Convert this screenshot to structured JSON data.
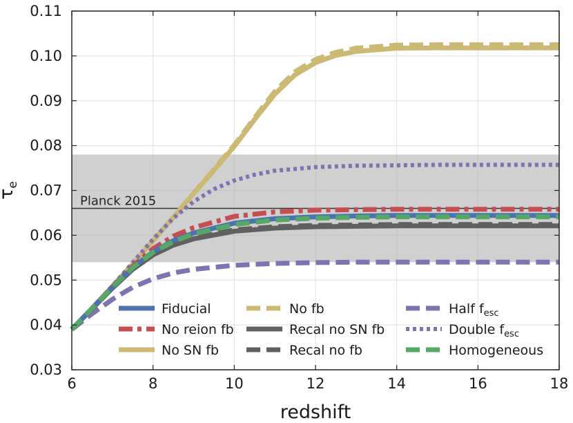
{
  "chart_data": {
    "type": "line",
    "title": "",
    "xlabel": "redshift",
    "ylabel": "τ",
    "ylabel_subscript": "e",
    "xlim": [
      6,
      18
    ],
    "ylim": [
      0.03,
      0.11
    ],
    "xticks": [
      6,
      8,
      10,
      12,
      14,
      16,
      18
    ],
    "xtick_labels": [
      "6",
      "8",
      "10",
      "12",
      "14",
      "16",
      "18"
    ],
    "yticks": [
      0.03,
      0.04,
      0.05,
      0.06,
      0.07,
      0.08,
      0.09,
      0.1,
      0.11
    ],
    "ytick_labels": [
      "0.03",
      "0.04",
      "0.05",
      "0.06",
      "0.07",
      "0.08",
      "0.09",
      "0.10",
      "0.11"
    ],
    "grid": true,
    "legend_position": "lower-right",
    "band": {
      "label": "Planck 2015",
      "center": 0.066,
      "low": 0.054,
      "high": 0.078
    },
    "series": [
      {
        "name": "Fiducial",
        "name_sub": "",
        "color": "#4c72b0",
        "style": "solid",
        "x": [
          6,
          6.5,
          7,
          7.5,
          8,
          8.5,
          9,
          10,
          11,
          12,
          13,
          14,
          15,
          16,
          17,
          18
        ],
        "y": [
          0.039,
          0.0437,
          0.0484,
          0.0528,
          0.0563,
          0.0588,
          0.0605,
          0.0627,
          0.0637,
          0.0641,
          0.0643,
          0.0644,
          0.0644,
          0.0644,
          0.0644,
          0.0644
        ]
      },
      {
        "name": "No reion fb",
        "name_sub": "",
        "color": "#c44e52",
        "style": "dashdot",
        "x": [
          6,
          6.5,
          7,
          7.5,
          8,
          8.5,
          9,
          10,
          11,
          12,
          13,
          14,
          15,
          16,
          17,
          18
        ],
        "y": [
          0.039,
          0.0437,
          0.0485,
          0.0531,
          0.057,
          0.0598,
          0.0617,
          0.0642,
          0.0652,
          0.0656,
          0.0657,
          0.0658,
          0.0658,
          0.0658,
          0.0658,
          0.0658
        ]
      },
      {
        "name": "No SN fb",
        "name_sub": "",
        "color": "#ccb974",
        "style": "solid",
        "x": [
          6,
          6.5,
          7,
          7.5,
          8,
          8.5,
          9,
          9.5,
          10,
          10.5,
          11,
          11.5,
          12,
          12.5,
          13,
          14,
          15,
          16,
          17,
          18
        ],
        "y": [
          0.039,
          0.0437,
          0.0486,
          0.0536,
          0.0588,
          0.064,
          0.0693,
          0.0745,
          0.0798,
          0.0858,
          0.0915,
          0.0958,
          0.0985,
          0.1001,
          0.101,
          0.1017,
          0.1018,
          0.1018,
          0.1018,
          0.1018
        ]
      },
      {
        "name": "No fb",
        "name_sub": "",
        "color": "#ccb974",
        "style": "dashed",
        "x": [
          6,
          6.5,
          7,
          7.5,
          8,
          8.5,
          9,
          9.5,
          10,
          10.5,
          11,
          11.5,
          12,
          12.5,
          13,
          14,
          15,
          16,
          17,
          18
        ],
        "y": [
          0.039,
          0.0437,
          0.0486,
          0.0536,
          0.0588,
          0.064,
          0.0694,
          0.0747,
          0.0801,
          0.0862,
          0.0921,
          0.0965,
          0.0992,
          0.1008,
          0.1017,
          0.1024,
          0.1025,
          0.1025,
          0.1025,
          0.1025
        ]
      },
      {
        "name": "Recal no SN fb",
        "name_sub": "",
        "color": "#606060",
        "style": "solid",
        "x": [
          6,
          6.5,
          7,
          7.5,
          8,
          8.5,
          9,
          10,
          11,
          12,
          13,
          14,
          15,
          16,
          17,
          18
        ],
        "y": [
          0.039,
          0.0436,
          0.0482,
          0.0524,
          0.0556,
          0.0578,
          0.0592,
          0.0609,
          0.0616,
          0.0619,
          0.062,
          0.0621,
          0.0621,
          0.0621,
          0.0621,
          0.0621
        ]
      },
      {
        "name": "Recal no fb",
        "name_sub": "",
        "color": "#606060",
        "style": "dashed",
        "x": [
          6,
          6.5,
          7,
          7.5,
          8,
          8.5,
          9,
          10,
          11,
          12,
          13,
          14,
          15,
          16,
          17,
          18
        ],
        "y": [
          0.039,
          0.0436,
          0.0482,
          0.0525,
          0.0558,
          0.058,
          0.0594,
          0.0612,
          0.0619,
          0.0622,
          0.0623,
          0.0624,
          0.0624,
          0.0624,
          0.0624,
          0.0624
        ]
      },
      {
        "name": "Half f",
        "name_sub": "esc",
        "color": "#8172b2",
        "style": "dashed",
        "x": [
          6,
          6.5,
          7,
          7.5,
          8,
          8.5,
          9,
          10,
          11,
          12,
          13,
          14,
          15,
          16,
          17,
          18
        ],
        "y": [
          0.039,
          0.0425,
          0.0457,
          0.0484,
          0.0503,
          0.0516,
          0.0524,
          0.0533,
          0.0537,
          0.0539,
          0.054,
          0.054,
          0.054,
          0.054,
          0.054,
          0.054
        ]
      },
      {
        "name": "Double f",
        "name_sub": "esc",
        "color": "#8172b2",
        "style": "dotted",
        "x": [
          6,
          6.5,
          7,
          7.5,
          8,
          8.5,
          9,
          9.5,
          10,
          10.5,
          11,
          12,
          13,
          14,
          15,
          16,
          17,
          18
        ],
        "y": [
          0.039,
          0.0437,
          0.0487,
          0.0539,
          0.0591,
          0.0638,
          0.0675,
          0.0703,
          0.0722,
          0.0735,
          0.0744,
          0.0752,
          0.0755,
          0.0756,
          0.0757,
          0.0757,
          0.0757,
          0.0757
        ]
      },
      {
        "name": "Homogeneous",
        "name_sub": "",
        "color": "#55a868",
        "style": "dashed",
        "x": [
          6,
          6.5,
          7,
          7.5,
          8,
          8.5,
          9,
          10,
          11,
          12,
          13,
          14,
          15,
          16,
          17,
          18
        ],
        "y": [
          0.039,
          0.0437,
          0.0484,
          0.0528,
          0.0562,
          0.0586,
          0.0603,
          0.0624,
          0.0634,
          0.0638,
          0.064,
          0.0641,
          0.0641,
          0.0641,
          0.0641,
          0.0641
        ]
      }
    ]
  }
}
